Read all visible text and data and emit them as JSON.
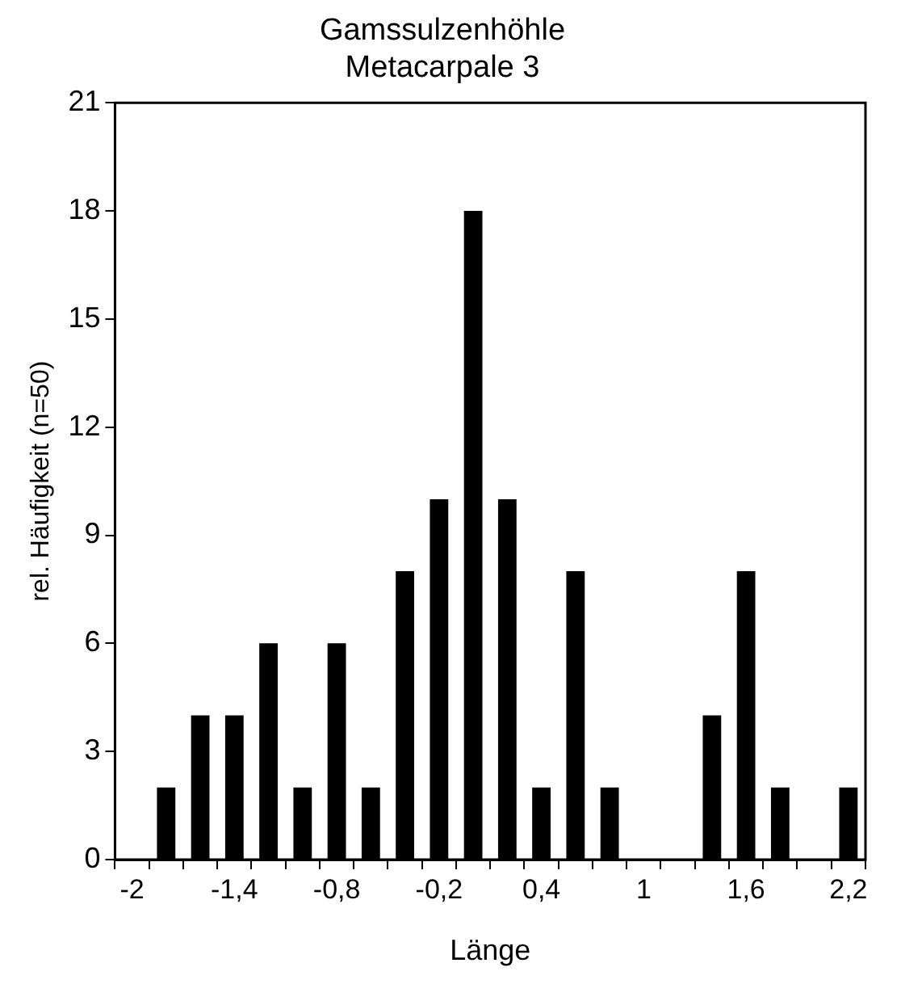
{
  "chart_data": {
    "type": "bar",
    "title": "Gamssulzenhöhle\nMetacarpale 3",
    "xlabel": "Länge",
    "ylabel": "rel. Häufigkeit (n=50)",
    "categories": [
      "-2",
      null,
      null,
      "-1,4",
      null,
      null,
      "-0,8",
      null,
      null,
      "-0,2",
      null,
      null,
      "0,4",
      null,
      null,
      "1",
      null,
      null,
      "1,6",
      null,
      null,
      "2,2"
    ],
    "values": [
      0,
      2,
      4,
      4,
      6,
      2,
      6,
      2,
      8,
      10,
      18,
      10,
      2,
      8,
      2,
      0,
      0,
      4,
      8,
      2,
      0,
      2
    ],
    "color": "#000000",
    "ylim": [
      0,
      21
    ],
    "yticks": [
      0,
      3,
      6,
      9,
      12,
      15,
      18,
      21
    ],
    "grid": false,
    "legend": false
  }
}
